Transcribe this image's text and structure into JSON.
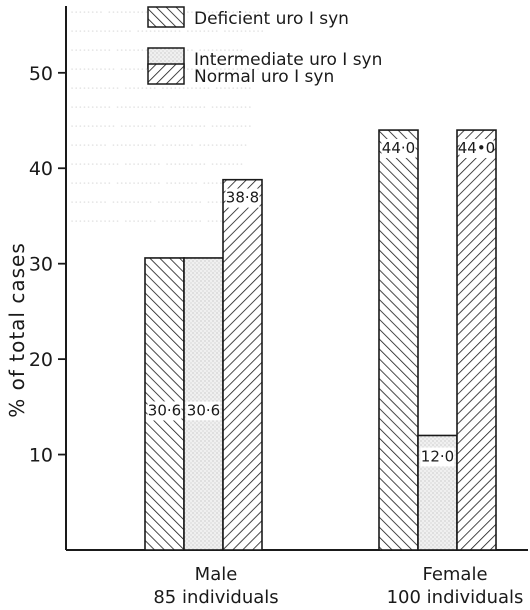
{
  "chart_data": {
    "type": "bar",
    "title": "",
    "xlabel": "",
    "ylabel": "% of total cases",
    "ylim": [
      0,
      57
    ],
    "yticks": [
      10,
      20,
      30,
      40,
      50
    ],
    "grid": false,
    "legend_position": "top",
    "categories": [
      "Male",
      "Female"
    ],
    "category_sublabels": [
      "85 individuals",
      "100 individuals"
    ],
    "series": [
      {
        "name": "Deficient uro I syn",
        "pattern": "hatch-backslash",
        "values": [
          30.6,
          44.0
        ],
        "labels": [
          "30·6",
          "44·0"
        ]
      },
      {
        "name": "Intermediate uro I syn",
        "pattern": "stipple",
        "values": [
          30.6,
          12.0
        ],
        "labels": [
          "30·6",
          "12·0"
        ]
      },
      {
        "name": "Normal uro I syn",
        "pattern": "hatch-slash",
        "values": [
          38.8,
          44.0
        ],
        "labels": [
          "38·8",
          "44•0"
        ]
      }
    ],
    "colors": {
      "ink": "#1a1a1a",
      "stipple": "#e6e6e6",
      "background": "#ffffff"
    }
  }
}
